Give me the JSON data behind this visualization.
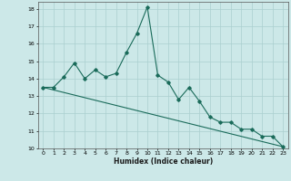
{
  "xlabel": "Humidex (Indice chaleur)",
  "xlim": [
    -0.5,
    23.5
  ],
  "ylim": [
    10,
    18.4
  ],
  "yticks": [
    10,
    11,
    12,
    13,
    14,
    15,
    16,
    17,
    18
  ],
  "xticks": [
    0,
    1,
    2,
    3,
    4,
    5,
    6,
    7,
    8,
    9,
    10,
    11,
    12,
    13,
    14,
    15,
    16,
    17,
    18,
    19,
    20,
    21,
    22,
    23
  ],
  "bg_color": "#cce8e8",
  "line_color": "#1a6b5a",
  "grid_color": "#aacfcf",
  "series1_x": [
    0,
    1,
    2,
    3,
    4,
    5,
    6,
    7,
    8,
    9,
    10,
    11,
    12,
    13,
    14,
    15,
    16,
    17,
    18,
    19,
    20,
    21,
    22,
    23
  ],
  "series1_y": [
    13.5,
    13.5,
    14.1,
    14.9,
    14.0,
    14.5,
    14.1,
    14.3,
    15.5,
    16.6,
    18.1,
    14.2,
    13.8,
    12.8,
    13.5,
    12.7,
    11.8,
    11.5,
    11.5,
    11.1,
    11.1,
    10.7,
    10.7,
    10.1
  ],
  "series2_x": [
    0,
    23
  ],
  "series2_y": [
    13.5,
    10.1
  ]
}
